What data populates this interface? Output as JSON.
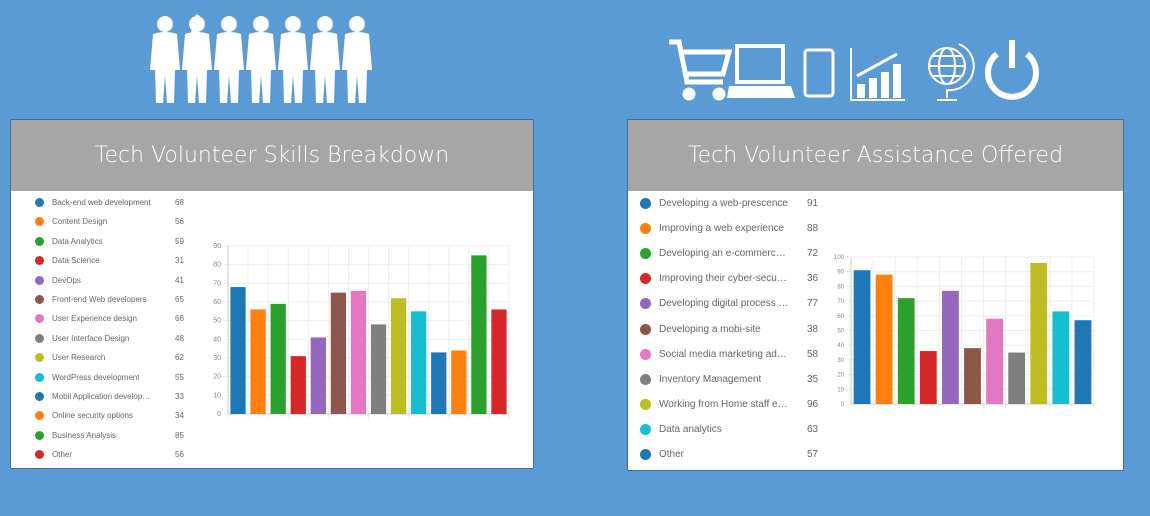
{
  "background_color": "#5b9bd5",
  "header_icons_left": [
    "people-silhouettes-icon"
  ],
  "header_icons_right": [
    "shopping-cart-icon",
    "laptop-icon",
    "tablet-icon",
    "growth-chart-icon",
    "globe-icon",
    "power-icon"
  ],
  "chart_data": [
    {
      "type": "bar",
      "title": "Tech Volunteer Skills Breakdown",
      "categories": [
        "Back-end web development",
        "Content Design",
        "Data Analytics",
        "Data Science",
        "DevOps",
        "Front-end Web developers",
        "User Experience design",
        "User Interface Design",
        "User Research",
        "WordPress development",
        "Mobil Application developme...",
        "Online security options",
        "Business Analysis",
        "Other"
      ],
      "values": [
        68,
        56,
        59,
        31,
        41,
        65,
        66,
        48,
        62,
        55,
        33,
        34,
        85,
        56
      ],
      "colors": [
        "#1f77b4",
        "#ff7f0e",
        "#2ca02c",
        "#d62728",
        "#9467bd",
        "#8c564b",
        "#e377c2",
        "#7f7f7f",
        "#bcbd22",
        "#17becf",
        "#1f77b4",
        "#ff7f0e",
        "#2ca02c",
        "#d62728"
      ],
      "ylim": [
        0,
        90
      ],
      "yticks": [
        0,
        10,
        20,
        30,
        40,
        50,
        60,
        70,
        80,
        90
      ],
      "grid": true,
      "legend": "left"
    },
    {
      "type": "bar",
      "title": "Tech Volunteer Assistance Offered",
      "categories": [
        "Developing a web-prescence",
        "Improving a web experience",
        "Developing an e-commerce c...",
        "Improving their cyber-security",
        "Developing digital process flo...",
        "Developing a mobi-site",
        "Social media marketing advice",
        "Inventory Management",
        "Working from Home staff eng...",
        "Data analytics",
        "Other"
      ],
      "values": [
        91,
        88,
        72,
        36,
        77,
        38,
        58,
        35,
        96,
        63,
        57
      ],
      "colors": [
        "#1f77b4",
        "#ff7f0e",
        "#2ca02c",
        "#d62728",
        "#9467bd",
        "#8c564b",
        "#e377c2",
        "#7f7f7f",
        "#bcbd22",
        "#17becf",
        "#1f77b4"
      ],
      "ylim": [
        0,
        100
      ],
      "yticks": [
        0,
        10,
        20,
        30,
        40,
        50,
        60,
        70,
        80,
        90,
        100
      ],
      "grid": true,
      "legend": "left"
    }
  ]
}
